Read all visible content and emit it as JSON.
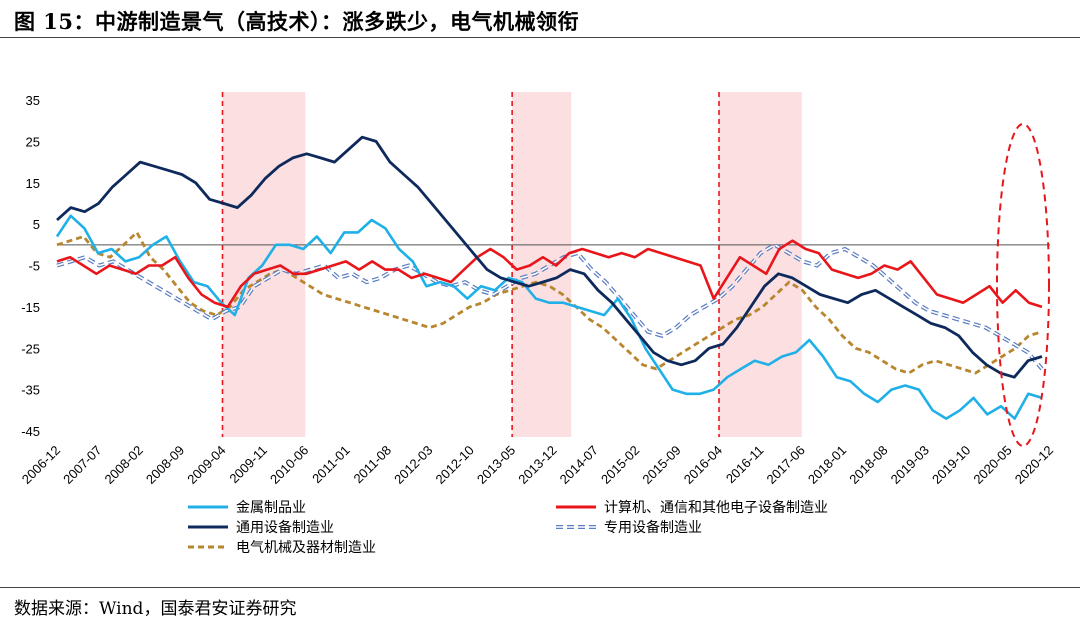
{
  "header": {
    "title": "图 15：中游制造景气（高技术）：涨多跌少，电气机械领衔"
  },
  "footer": {
    "source": "数据来源：Wind，国泰君安证券研究"
  },
  "chart_data": {
    "type": "line",
    "title": "图 15：中游制造景气（高技术）：涨多跌少，电气机械领衔",
    "xlabel": "",
    "ylabel": "",
    "ylim": [
      -45,
      35
    ],
    "yticks": [
      35,
      25,
      15,
      5,
      -5,
      -15,
      -25,
      -35,
      -45
    ],
    "x_tick_labels": [
      "2006-12",
      "2007-07",
      "2008-02",
      "2008-09",
      "2009-04",
      "2009-11",
      "2010-06",
      "2011-01",
      "2011-08",
      "2012-03",
      "2012-10",
      "2013-05",
      "2013-12",
      "2014-07",
      "2015-02",
      "2015-09",
      "2016-04",
      "2016-11",
      "2017-06",
      "2018-01",
      "2018-08",
      "2019-03",
      "2019-10",
      "2020-05",
      "2020-12"
    ],
    "grid": false,
    "legend_position": "bottom",
    "shaded_periods": [
      {
        "start": "2009-04",
        "end": "2010-06"
      },
      {
        "start": "2013-05",
        "end": "2014-03"
      },
      {
        "start": "2016-04",
        "end": "2017-06"
      }
    ],
    "highlight_ellipse": {
      "x": "2020-03 to 2020-12",
      "y": "-50 to 30",
      "color": "#e31a1c"
    },
    "series": [
      {
        "name": "金属制品业",
        "color": "#1fb0e8",
        "dash": "solid",
        "values": [
          2,
          7,
          4,
          -2,
          -1,
          -4,
          -3,
          0,
          2,
          -4,
          -9,
          -10,
          -14,
          -17,
          -8,
          -5,
          0,
          0,
          -1,
          2,
          -2,
          3,
          3,
          6,
          4,
          -1,
          -4,
          -10,
          -9,
          -10,
          -13,
          -10,
          -11,
          -8,
          -9,
          -13,
          -14,
          -14,
          -15,
          -16,
          -17,
          -13,
          -18,
          -25,
          -30,
          -35,
          -36,
          -36,
          -35,
          -32,
          -30,
          -28,
          -29,
          -27,
          -26,
          -23,
          -27,
          -32,
          -33,
          -36,
          -38,
          -35,
          -34,
          -35,
          -40,
          -42,
          -40,
          -37,
          -41,
          -39,
          -42,
          -36,
          -37
        ]
      },
      {
        "name": "计算机、通信和其他电子设备制造业",
        "color": "#e8161b",
        "dash": "solid",
        "values": [
          -4,
          -3,
          -5,
          -7,
          -5,
          -6,
          -7,
          -5,
          -5,
          -3,
          -8,
          -12,
          -14,
          -15,
          -10,
          -7,
          -6,
          -5,
          -7,
          -7,
          -6,
          -5,
          -4,
          -6,
          -4,
          -6,
          -6,
          -8,
          -7,
          -8,
          -9,
          -6,
          -3,
          -1,
          -3,
          -6,
          -5,
          -3,
          -5,
          -2,
          -1,
          -2,
          -3,
          -2,
          -3,
          -1,
          -2,
          -3,
          -4,
          -5,
          -13,
          -8,
          -3,
          -5,
          -7,
          -1,
          1,
          -1,
          -2,
          -6,
          -7,
          -8,
          -7,
          -5,
          -6,
          -4,
          -8,
          -12,
          -13,
          -14,
          -12,
          -10,
          -14,
          -11,
          -14,
          -15
        ]
      },
      {
        "name": "通用设备制造业",
        "color": "#0e2a5c",
        "dash": "solid",
        "values": [
          6,
          9,
          8,
          10,
          14,
          17,
          20,
          19,
          18,
          17,
          15,
          11,
          10,
          9,
          12,
          16,
          19,
          21,
          22,
          21,
          20,
          23,
          26,
          25,
          20,
          17,
          14,
          10,
          6,
          2,
          -2,
          -6,
          -8,
          -9,
          -10,
          -9,
          -8,
          -6,
          -7,
          -11,
          -14,
          -18,
          -22,
          -26,
          -28,
          -29,
          -28,
          -25,
          -24,
          -20,
          -15,
          -10,
          -7,
          -8,
          -10,
          -12,
          -13,
          -14,
          -12,
          -11,
          -13,
          -15,
          -17,
          -19,
          -20,
          -22,
          -26,
          -29,
          -31,
          -32,
          -28,
          -27
        ]
      },
      {
        "name": "专用设备制造业",
        "color": "#5a7cc0",
        "dash": "double-dash",
        "values": [
          -5,
          -4,
          -3,
          -5,
          -4,
          -6,
          -8,
          -10,
          -12,
          -14,
          -16,
          -18,
          -16,
          -15,
          -10,
          -8,
          -6,
          -7,
          -6,
          -5,
          -8,
          -7,
          -9,
          -8,
          -6,
          -5,
          -7,
          -9,
          -10,
          -9,
          -11,
          -12,
          -10,
          -8,
          -7,
          -5,
          -3,
          -2,
          -6,
          -9,
          -13,
          -17,
          -21,
          -22,
          -20,
          -17,
          -15,
          -13,
          -10,
          -6,
          -2,
          0,
          -2,
          -4,
          -5,
          -2,
          -1,
          -3,
          -5,
          -8,
          -11,
          -14,
          -16,
          -17,
          -18,
          -19,
          -20,
          -22,
          -24,
          -26,
          -30
        ]
      },
      {
        "name": "电气机械及器材制造业",
        "color": "#b8862f",
        "dash": "dashed",
        "values": [
          0,
          1,
          2,
          -2,
          -3,
          0,
          3,
          -3,
          -6,
          -10,
          -14,
          -16,
          -17,
          -15,
          -11,
          -9,
          -7,
          -6,
          -8,
          -10,
          -12,
          -13,
          -14,
          -15,
          -16,
          -17,
          -18,
          -19,
          -20,
          -19,
          -17,
          -15,
          -14,
          -12,
          -11,
          -10,
          -9,
          -10,
          -12,
          -15,
          -18,
          -20,
          -23,
          -26,
          -29,
          -30,
          -28,
          -26,
          -24,
          -22,
          -20,
          -18,
          -17,
          -15,
          -12,
          -9,
          -11,
          -15,
          -18,
          -22,
          -25,
          -26,
          -28,
          -30,
          -31,
          -29,
          -28,
          -29,
          -30,
          -31,
          -29,
          -27,
          -25,
          -22,
          -21
        ]
      }
    ]
  }
}
